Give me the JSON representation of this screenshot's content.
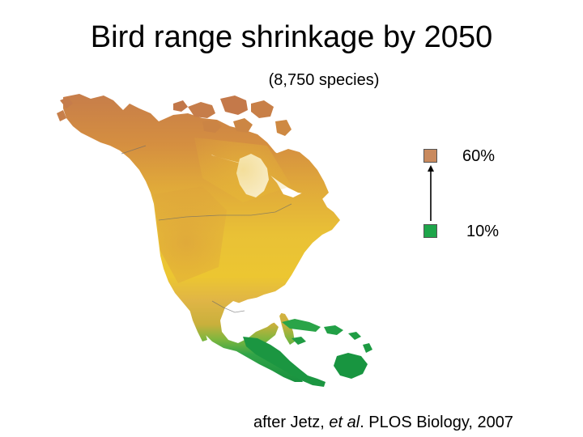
{
  "title": "Bird range shrinkage by 2050",
  "subtitle": "(8,750 species)",
  "legend": {
    "high_label": "60%",
    "low_label": "10%",
    "high_color": "#c98a5e",
    "low_color": "#1ea54a"
  },
  "citation": {
    "prefix": "after Jetz, ",
    "italic": "et al",
    "suffix": ". PLOS Biology, 2007"
  },
  "map": {
    "region": "North America and Central America",
    "colors": {
      "high": "#c98a5e",
      "mid": "#e8c020",
      "low": "#1ea54a"
    }
  }
}
